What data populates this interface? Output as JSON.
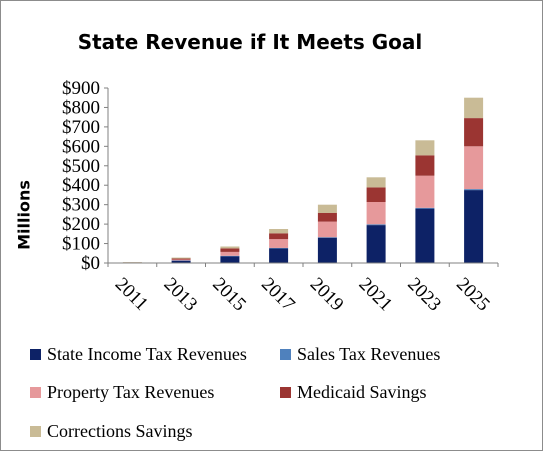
{
  "chart_data": {
    "type": "bar",
    "stacked": true,
    "title": "State Revenue if It Meets Goal",
    "ylabel": "Millions",
    "xlabel": "",
    "ylim": [
      0,
      900
    ],
    "yticks": [
      "$0",
      "$100",
      "$200",
      "$300",
      "$400",
      "$500",
      "$600",
      "$700",
      "$800",
      "$900"
    ],
    "categories": [
      "2011",
      "2013",
      "2015",
      "2017",
      "2019",
      "2021",
      "2023",
      "2025"
    ],
    "grid": false,
    "legend_position": "bottom",
    "series": [
      {
        "name": "State Income Tax Revenues",
        "color": "#0d2266",
        "values": [
          1,
          12,
          35,
          75,
          130,
          195,
          280,
          375
        ]
      },
      {
        "name": "Sales Tax Revenues",
        "color": "#4f81bd",
        "values": [
          0,
          1,
          2,
          3,
          3,
          4,
          4,
          5
        ]
      },
      {
        "name": "Property Tax Revenues",
        "color": "#e6999b",
        "values": [
          1,
          5,
          20,
          45,
          80,
          115,
          165,
          220
        ]
      },
      {
        "name": "Medicaid Savings",
        "color": "#9b3532",
        "values": [
          1,
          5,
          18,
          30,
          45,
          75,
          105,
          145
        ]
      },
      {
        "name": "Corrections Savings",
        "color": "#c9bb96",
        "values": [
          1,
          5,
          10,
          22,
          42,
          52,
          77,
          105
        ]
      }
    ]
  }
}
